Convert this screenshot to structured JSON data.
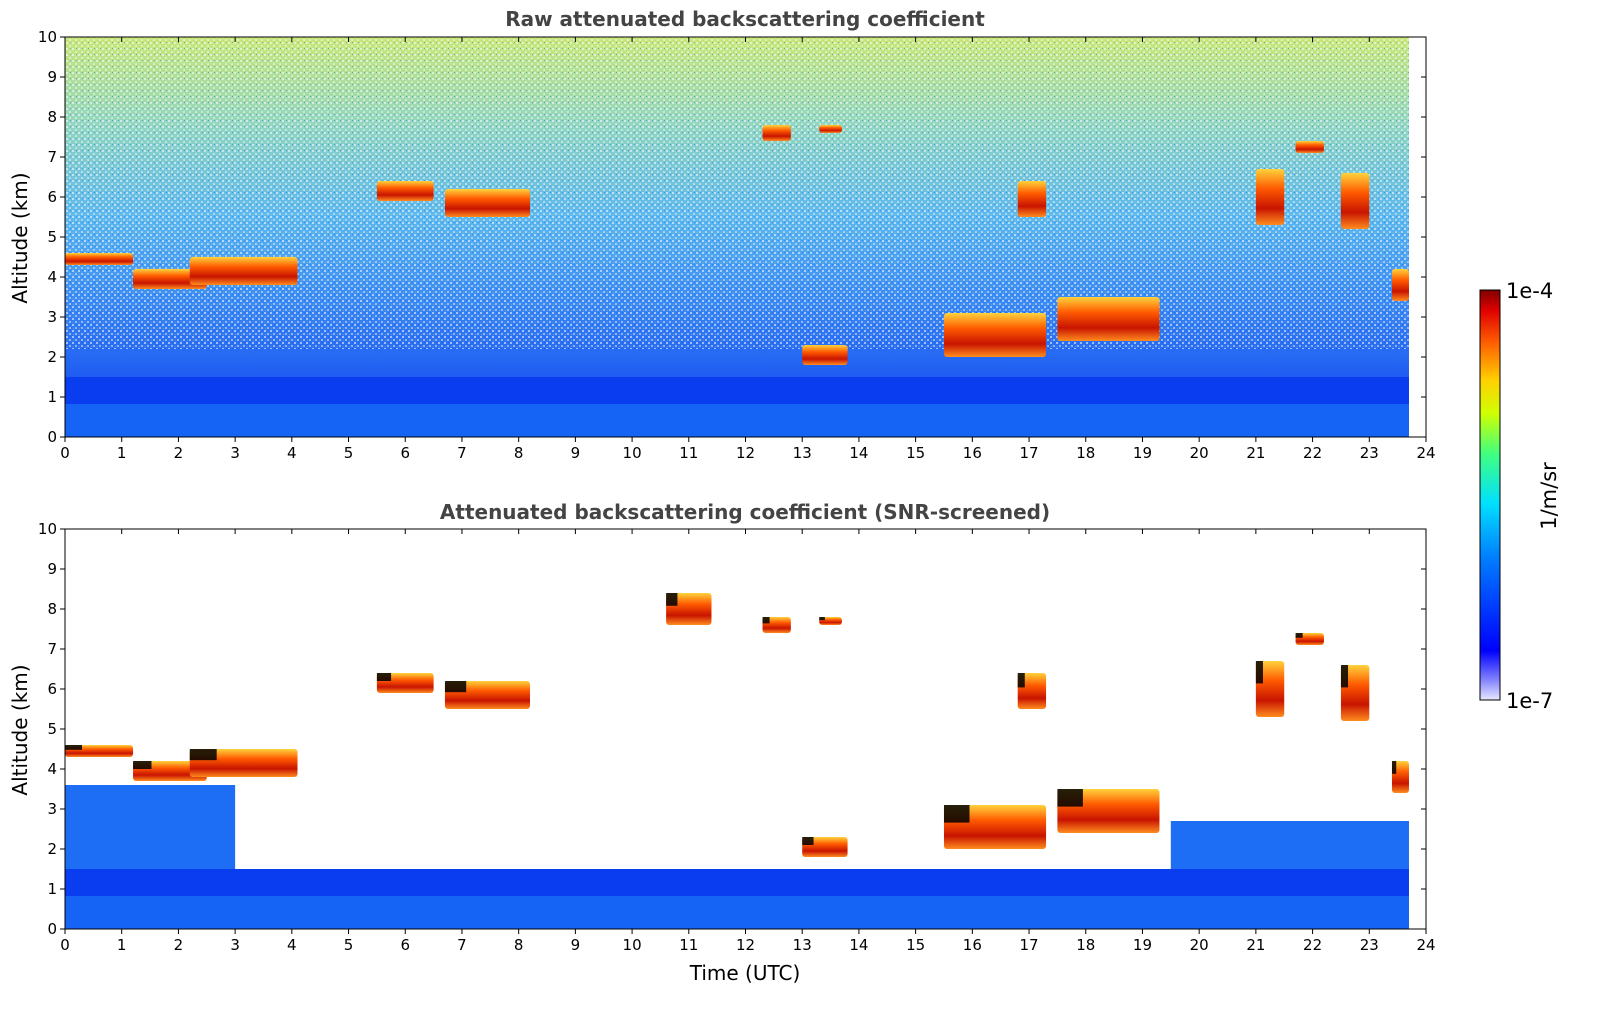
{
  "colors": {
    "colormap": "jet",
    "layer_base": "#0a3cf0",
    "layer_low": "#1e6ef5",
    "aerosol": "#2fb0ff",
    "cloud_edge": "#ffd23c",
    "cloud_core": "#c81400",
    "attenuated_screened": "#000000",
    "masked": "#ffffff"
  },
  "colorbar": {
    "label": "1/m/sr",
    "max_label": "1e-4",
    "min_label": "1e-7",
    "vmin": 1e-07,
    "vmax": 0.0001,
    "scale": "log",
    "placement": "right"
  },
  "chart_data": [
    {
      "type": "heatmap",
      "title": "Raw attenuated backscattering coefficient",
      "xlabel": "",
      "ylabel": "Altitude (km)",
      "xlim": [
        0,
        24
      ],
      "ylim": [
        0,
        10
      ],
      "data_end_hour": 23.7,
      "xticks": [
        "0",
        "1",
        "2",
        "3",
        "4",
        "5",
        "6",
        "7",
        "8",
        "9",
        "10",
        "11",
        "12",
        "13",
        "14",
        "15",
        "16",
        "17",
        "18",
        "19",
        "20",
        "21",
        "22",
        "23",
        "24"
      ],
      "yticks": [
        "0",
        "1",
        "2",
        "3",
        "4",
        "5",
        "6",
        "7",
        "8",
        "9",
        "10"
      ],
      "features": [
        {
          "kind": "boundary_layer",
          "t0": 0,
          "t1": 23.7,
          "z0": 0,
          "z1": 1.5,
          "level": "low"
        },
        {
          "kind": "cloud",
          "t0": 0.0,
          "t1": 1.2,
          "z0": 4.3,
          "z1": 4.6
        },
        {
          "kind": "cloud",
          "t0": 1.2,
          "t1": 2.5,
          "z0": 3.7,
          "z1": 4.2
        },
        {
          "kind": "cloud",
          "t0": 2.2,
          "t1": 4.1,
          "z0": 3.8,
          "z1": 4.5
        },
        {
          "kind": "cloud",
          "t0": 5.5,
          "t1": 6.5,
          "z0": 5.9,
          "z1": 6.4
        },
        {
          "kind": "cloud",
          "t0": 6.7,
          "t1": 8.2,
          "z0": 5.5,
          "z1": 6.2
        },
        {
          "kind": "cloud",
          "t0": 12.3,
          "t1": 12.8,
          "z0": 7.4,
          "z1": 7.8
        },
        {
          "kind": "cloud",
          "t0": 13.3,
          "t1": 13.7,
          "z0": 7.6,
          "z1": 7.8
        },
        {
          "kind": "cloud",
          "t0": 13.0,
          "t1": 13.8,
          "z0": 1.8,
          "z1": 2.3
        },
        {
          "kind": "cloud",
          "t0": 15.5,
          "t1": 17.3,
          "z0": 2.0,
          "z1": 3.1
        },
        {
          "kind": "cloud",
          "t0": 16.8,
          "t1": 17.3,
          "z0": 5.5,
          "z1": 6.4
        },
        {
          "kind": "cloud",
          "t0": 17.5,
          "t1": 19.3,
          "z0": 2.4,
          "z1": 3.5
        },
        {
          "kind": "cloud",
          "t0": 21.0,
          "t1": 21.5,
          "z0": 5.3,
          "z1": 6.7
        },
        {
          "kind": "cloud",
          "t0": 21.7,
          "t1": 22.2,
          "z0": 7.1,
          "z1": 7.4
        },
        {
          "kind": "cloud",
          "t0": 22.5,
          "t1": 23.0,
          "z0": 5.2,
          "z1": 6.6
        },
        {
          "kind": "cloud",
          "t0": 23.4,
          "t1": 23.7,
          "z0": 3.4,
          "z1": 4.2
        }
      ]
    },
    {
      "type": "heatmap",
      "title": "Attenuated backscattering coefficient (SNR-screened)",
      "xlabel": "Time (UTC)",
      "ylabel": "Altitude (km)",
      "xlim": [
        0,
        24
      ],
      "ylim": [
        0,
        10
      ],
      "data_end_hour": 23.7,
      "xticks": [
        "0",
        "1",
        "2",
        "3",
        "4",
        "5",
        "6",
        "7",
        "8",
        "9",
        "10",
        "11",
        "12",
        "13",
        "14",
        "15",
        "16",
        "17",
        "18",
        "19",
        "20",
        "21",
        "22",
        "23",
        "24"
      ],
      "yticks": [
        "0",
        "1",
        "2",
        "3",
        "4",
        "5",
        "6",
        "7",
        "8",
        "9",
        "10"
      ],
      "features": [
        {
          "kind": "boundary_layer",
          "t0": 0,
          "t1": 23.7,
          "z0": 0,
          "z1": 1.5,
          "level": "low"
        },
        {
          "kind": "aerosol_layer",
          "t0": 0,
          "t1": 3.0,
          "z0": 1.5,
          "z1": 3.6
        },
        {
          "kind": "aerosol_layer",
          "t0": 19.5,
          "t1": 23.7,
          "z0": 1.5,
          "z1": 2.7
        },
        {
          "kind": "cloud",
          "t0": 0.0,
          "t1": 1.2,
          "z0": 4.3,
          "z1": 4.6
        },
        {
          "kind": "cloud",
          "t0": 1.2,
          "t1": 2.5,
          "z0": 3.7,
          "z1": 4.2
        },
        {
          "kind": "cloud",
          "t0": 2.2,
          "t1": 4.1,
          "z0": 3.8,
          "z1": 4.5
        },
        {
          "kind": "cloud",
          "t0": 5.5,
          "t1": 6.5,
          "z0": 5.9,
          "z1": 6.4
        },
        {
          "kind": "cloud",
          "t0": 6.7,
          "t1": 8.2,
          "z0": 5.5,
          "z1": 6.2
        },
        {
          "kind": "cloud",
          "t0": 10.6,
          "t1": 11.4,
          "z0": 7.6,
          "z1": 8.4
        },
        {
          "kind": "cloud",
          "t0": 12.3,
          "t1": 12.8,
          "z0": 7.4,
          "z1": 7.8
        },
        {
          "kind": "cloud",
          "t0": 13.3,
          "t1": 13.7,
          "z0": 7.6,
          "z1": 7.8
        },
        {
          "kind": "cloud",
          "t0": 13.0,
          "t1": 13.8,
          "z0": 1.8,
          "z1": 2.3
        },
        {
          "kind": "cloud",
          "t0": 15.5,
          "t1": 17.3,
          "z0": 2.0,
          "z1": 3.1
        },
        {
          "kind": "cloud",
          "t0": 16.8,
          "t1": 17.3,
          "z0": 5.5,
          "z1": 6.4
        },
        {
          "kind": "cloud",
          "t0": 17.5,
          "t1": 19.3,
          "z0": 2.4,
          "z1": 3.5
        },
        {
          "kind": "cloud",
          "t0": 21.0,
          "t1": 21.5,
          "z0": 5.3,
          "z1": 6.7
        },
        {
          "kind": "cloud",
          "t0": 21.7,
          "t1": 22.2,
          "z0": 7.1,
          "z1": 7.4
        },
        {
          "kind": "cloud",
          "t0": 22.5,
          "t1": 23.0,
          "z0": 5.2,
          "z1": 6.6
        },
        {
          "kind": "cloud",
          "t0": 23.4,
          "t1": 23.7,
          "z0": 3.4,
          "z1": 4.2
        }
      ]
    }
  ]
}
